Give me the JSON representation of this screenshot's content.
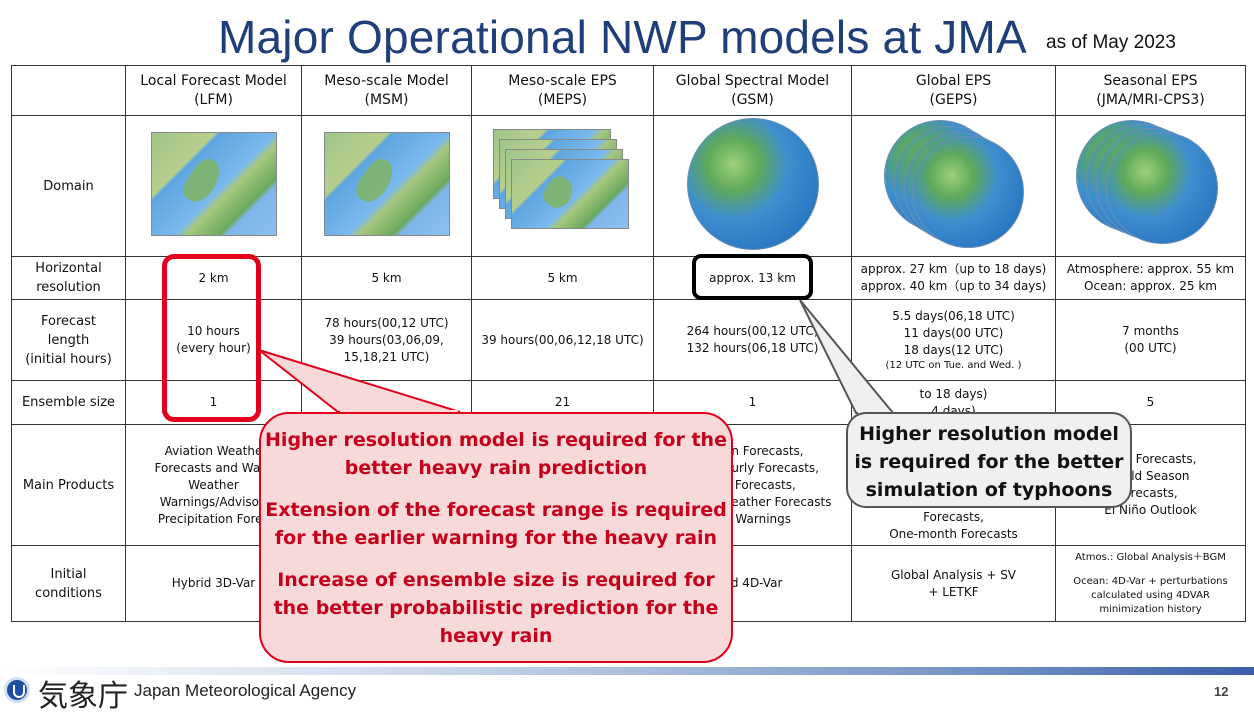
{
  "header": {
    "title": "Major Operational NWP models at JMA",
    "subtitle": "as of May 2023"
  },
  "table": {
    "columns": [
      {
        "line1": "Local Forecast Model",
        "line2": "(LFM)"
      },
      {
        "line1": "Meso-scale Model",
        "line2": "(MSM)"
      },
      {
        "line1": "Meso-scale EPS",
        "line2": "(MEPS)"
      },
      {
        "line1": "Global Spectral Model",
        "line2": "(GSM)"
      },
      {
        "line1": "Global EPS",
        "line2": "(GEPS)"
      },
      {
        "line1": "Seasonal EPS",
        "line2": "(JMA/MRI-CPS3)"
      }
    ],
    "rows": {
      "domain": {
        "label": "Domain"
      },
      "resolution": {
        "label1": "Horizontal",
        "label2": "resolution",
        "lfm": "2 km",
        "msm": "5 km",
        "meps": "5 km",
        "gsm": "approx. 13 km",
        "geps1": "approx. 27 km（up to 18 days)",
        "geps2": "approx. 40 km（up to 34 days)",
        "cps1": "Atmosphere: approx. 55 km",
        "cps2": "Ocean: approx. 25 km"
      },
      "forecast": {
        "label1": "Forecast",
        "label2": "length",
        "label3": "(initial hours)",
        "lfm1": "10 hours",
        "lfm2": "(every hour)",
        "msm1": "78 hours(00,12 UTC)",
        "msm2": "39 hours(03,06,09,",
        "msm3": "15,18,21 UTC)",
        "meps": "39 hours(00,06,12,18 UTC)",
        "gsm1": "264 hours(00,12 UTC)",
        "gsm2": "132 hours(06,18 UTC)",
        "geps1": "5.5 days(06,18 UTC)",
        "geps2": "11 days(00 UTC)",
        "geps3": "18 days(12 UTC)",
        "geps4": "(12 UTC on Tue. and Wed. )",
        "cps1": "7 months",
        "cps2": "(00 UTC)"
      },
      "ensemble": {
        "label": "Ensemble size",
        "lfm": "1",
        "meps": "21",
        "gsm": "1",
        "geps": "to 18 days)",
        "geps2": "4 days)",
        "cps": "5"
      },
      "products": {
        "label": "Main Products",
        "lfm1": "Aviation Weathe",
        "lfm2": "Forecasts and Warn",
        "lfm3": "Weather",
        "lfm4": "Warnings/Advisori",
        "lfm5": "Precipitation Forec",
        "gsm1": "on Forecasts,",
        "gsm2": "ourly Forecasts,",
        "gsm3": "y Forecasts,",
        "gsm4": "Veather Forecasts",
        "gsm5": "d Warnings",
        "geps1": "Forecasts,",
        "geps2": "One-month Forecasts",
        "cps1": "onth Forecasts,",
        "cps2": "/Cold Season",
        "cps3": "orecasts,",
        "cps4": "El Niño Outlook"
      },
      "initial": {
        "label1": "Initial",
        "label2": "conditions",
        "lfm": "Hybrid 3D-Var",
        "gsm": "rid 4D-Var",
        "geps1": "Global Analysis + SV",
        "geps2": "+ LETKF",
        "cps1": "Atmos.: Global Analysis＋BGM",
        "cps2": "Ocean: 4D-Var + perturbations",
        "cps3": "calculated using 4DVAR",
        "cps4": "minimization history"
      }
    }
  },
  "callouts": {
    "red": [
      "Higher resolution model is required for the better heavy rain prediction",
      "Extension of the forecast range is required for the earlier warning for the heavy rain",
      "Increase of ensemble size is required for the better probabilistic prediction for the heavy rain"
    ],
    "black": "Higher resolution model is required for the better simulation of typhoons"
  },
  "footer": {
    "org_jp": "気象庁",
    "org_en": "Japan Meteorological Agency",
    "page": "12"
  },
  "colors": {
    "title": "#1f3f7a",
    "callout_red": "#e3001b",
    "callout_red_fill": "#f7d9d9"
  }
}
